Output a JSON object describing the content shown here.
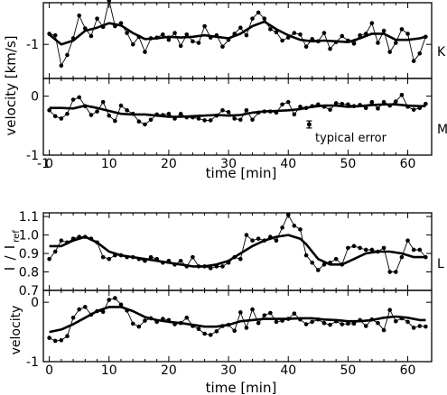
{
  "figure": {
    "background": "#ffffff",
    "ink": "#000000"
  },
  "chart_data": [
    {
      "id": "K",
      "type": "line",
      "panel_label": "K",
      "xlim": [
        -1,
        64
      ],
      "ylim": [
        -1.45,
        -0.45
      ],
      "yticks": [
        {
          "value": -1,
          "label": "-1"
        }
      ],
      "xtick_labels": [],
      "series": [
        {
          "style": "thin-dots",
          "x": [
            0,
            1,
            2,
            3,
            4,
            5,
            6,
            7,
            8,
            9,
            10,
            11,
            12,
            13,
            14,
            15,
            16,
            17,
            18,
            19,
            20,
            21,
            22,
            23,
            24,
            25,
            26,
            27,
            28,
            29,
            30,
            31,
            32,
            33,
            34,
            35,
            36,
            37,
            38,
            39,
            40,
            41,
            42,
            43,
            44,
            45,
            46,
            47,
            48,
            49,
            50,
            51,
            52,
            53,
            54,
            55,
            56,
            57,
            58,
            59,
            60,
            61,
            62,
            63
          ],
          "y": [
            -0.86,
            -0.88,
            -1.28,
            -1.14,
            -0.92,
            -0.62,
            -0.79,
            -0.89,
            -0.66,
            -0.77,
            -0.42,
            -0.76,
            -0.72,
            -0.85,
            -1.0,
            -0.9,
            -1.1,
            -0.92,
            -0.91,
            -0.87,
            -0.94,
            -0.85,
            -1.02,
            -0.87,
            -0.96,
            -0.98,
            -0.76,
            -0.91,
            -0.88,
            -1.03,
            -0.94,
            -0.86,
            -0.78,
            -0.88,
            -0.66,
            -0.58,
            -0.66,
            -0.8,
            -0.84,
            -0.95,
            -0.91,
            -0.85,
            -0.87,
            -1.03,
            -0.93,
            -0.96,
            -0.85,
            -1.06,
            -0.97,
            -0.89,
            -0.95,
            -0.99,
            -0.88,
            -0.86,
            -0.72,
            -0.98,
            -0.82,
            -1.1,
            -0.98,
            -0.8,
            -0.86,
            -1.22,
            -1.12,
            -0.9
          ]
        },
        {
          "style": "thick-smooth",
          "x": [
            0,
            2,
            4,
            6,
            8,
            10,
            12,
            14,
            16,
            18,
            20,
            22,
            24,
            26,
            28,
            30,
            32,
            34,
            36,
            38,
            40,
            42,
            44,
            46,
            48,
            50,
            52,
            54,
            56,
            58,
            60,
            62,
            63
          ],
          "y": [
            -0.87,
            -1.0,
            -0.95,
            -0.82,
            -0.78,
            -0.72,
            -0.75,
            -0.85,
            -0.93,
            -0.92,
            -0.9,
            -0.91,
            -0.9,
            -0.88,
            -0.9,
            -0.92,
            -0.86,
            -0.76,
            -0.7,
            -0.8,
            -0.88,
            -0.94,
            -0.96,
            -0.95,
            -0.96,
            -0.97,
            -0.92,
            -0.86,
            -0.86,
            -0.94,
            -0.94,
            -0.92,
            -0.9
          ]
        }
      ]
    },
    {
      "id": "M",
      "type": "line",
      "panel_label": "M",
      "xlim": [
        -1,
        64
      ],
      "ylim": [
        -1.0,
        0.3
      ],
      "yticks": [
        {
          "value": 0,
          "label": "0"
        },
        {
          "value": -1,
          "label": "-1"
        }
      ],
      "xtick_labels": [
        -1,
        0,
        10,
        20,
        30,
        40,
        50,
        60
      ],
      "xlabel": "time [min]",
      "annotation": "typical error",
      "error_bar": {
        "x": 43.5,
        "y": -0.48,
        "half_height": 0.06
      },
      "series": [
        {
          "style": "thin-dots",
          "x": [
            0,
            1,
            2,
            3,
            4,
            5,
            6,
            7,
            8,
            9,
            10,
            11,
            12,
            13,
            14,
            15,
            16,
            17,
            18,
            19,
            20,
            21,
            22,
            23,
            24,
            25,
            26,
            27,
            28,
            29,
            30,
            31,
            32,
            33,
            34,
            35,
            36,
            37,
            38,
            39,
            40,
            41,
            42,
            43,
            44,
            45,
            46,
            47,
            48,
            49,
            50,
            51,
            52,
            53,
            54,
            55,
            56,
            57,
            58,
            59,
            60,
            61,
            62,
            63
          ],
          "y": [
            -0.24,
            -0.34,
            -0.38,
            -0.3,
            -0.06,
            -0.02,
            -0.17,
            -0.32,
            -0.26,
            -0.1,
            -0.33,
            -0.42,
            -0.16,
            -0.24,
            -0.3,
            -0.43,
            -0.48,
            -0.4,
            -0.31,
            -0.32,
            -0.3,
            -0.38,
            -0.3,
            -0.36,
            -0.36,
            -0.38,
            -0.41,
            -0.41,
            -0.33,
            -0.24,
            -0.27,
            -0.38,
            -0.4,
            -0.24,
            -0.4,
            -0.28,
            -0.26,
            -0.26,
            -0.28,
            -0.14,
            -0.1,
            -0.31,
            -0.18,
            -0.2,
            -0.17,
            -0.14,
            -0.18,
            -0.23,
            -0.12,
            -0.13,
            -0.14,
            -0.17,
            -0.15,
            -0.2,
            -0.1,
            -0.21,
            -0.1,
            -0.16,
            -0.09,
            0.02,
            -0.18,
            -0.23,
            -0.2,
            -0.13
          ]
        },
        {
          "style": "thick-smooth",
          "x": [
            0,
            2,
            4,
            6,
            8,
            10,
            12,
            14,
            16,
            18,
            20,
            22,
            24,
            26,
            28,
            30,
            32,
            34,
            36,
            38,
            40,
            42,
            44,
            46,
            48,
            50,
            52,
            54,
            56,
            58,
            60,
            62,
            63
          ],
          "y": [
            -0.2,
            -0.2,
            -0.21,
            -0.16,
            -0.2,
            -0.25,
            -0.3,
            -0.31,
            -0.31,
            -0.33,
            -0.35,
            -0.35,
            -0.34,
            -0.33,
            -0.32,
            -0.33,
            -0.32,
            -0.28,
            -0.26,
            -0.25,
            -0.24,
            -0.22,
            -0.18,
            -0.16,
            -0.16,
            -0.18,
            -0.17,
            -0.15,
            -0.14,
            -0.14,
            -0.16,
            -0.17,
            -0.17
          ]
        }
      ]
    },
    {
      "id": "L",
      "type": "line",
      "panel_label": "L",
      "xlim": [
        -1,
        64
      ],
      "ylim": [
        0.7,
        1.12
      ],
      "yticks": [
        {
          "value": 1.1,
          "label": "1.1"
        },
        {
          "value": 1.0,
          "label": "1.0"
        },
        {
          "value": 0.9,
          "label": "0.9"
        },
        {
          "value": 0.8,
          "label": "0.8"
        },
        {
          "value": 0.7,
          "label": "0.7"
        }
      ],
      "xtick_labels": [],
      "ylabel": "I / I_ref",
      "ylabel_parts": {
        "I": "I",
        "slash": "/",
        "ref_I": "I",
        "sub": "ref"
      },
      "series": [
        {
          "style": "thin-dots",
          "x": [
            0,
            1,
            2,
            3,
            4,
            5,
            6,
            7,
            8,
            9,
            10,
            11,
            12,
            13,
            14,
            15,
            16,
            17,
            18,
            19,
            20,
            21,
            22,
            23,
            24,
            25,
            26,
            27,
            28,
            29,
            30,
            31,
            32,
            33,
            34,
            35,
            36,
            37,
            38,
            39,
            40,
            41,
            42,
            43,
            44,
            45,
            46,
            47,
            48,
            49,
            50,
            51,
            52,
            53,
            54,
            55,
            56,
            57,
            58,
            59,
            60,
            61,
            62,
            63
          ],
          "y": [
            0.87,
            0.91,
            0.97,
            0.96,
            0.98,
            0.99,
            0.99,
            0.98,
            0.96,
            0.88,
            0.87,
            0.89,
            0.89,
            0.88,
            0.88,
            0.87,
            0.86,
            0.88,
            0.87,
            0.85,
            0.86,
            0.84,
            0.86,
            0.83,
            0.88,
            0.83,
            0.83,
            0.82,
            0.83,
            0.83,
            0.85,
            0.88,
            0.87,
            1.0,
            0.97,
            0.98,
            0.97,
            0.99,
            0.97,
            1.04,
            1.11,
            1.05,
            1.03,
            0.89,
            0.85,
            0.81,
            0.84,
            0.85,
            0.87,
            0.84,
            0.93,
            0.94,
            0.93,
            0.92,
            0.92,
            0.91,
            0.93,
            0.8,
            0.8,
            0.88,
            0.97,
            0.92,
            0.92,
            0.88
          ]
        },
        {
          "style": "thick-smooth",
          "x": [
            0,
            2,
            4,
            6,
            8,
            10,
            12,
            14,
            16,
            18,
            20,
            22,
            24,
            26,
            28,
            30,
            32,
            34,
            36,
            38,
            40,
            42,
            43,
            45,
            47,
            49,
            51,
            53,
            55,
            57,
            59,
            61,
            63
          ],
          "y": [
            0.94,
            0.94,
            0.97,
            0.99,
            0.96,
            0.91,
            0.89,
            0.88,
            0.87,
            0.86,
            0.85,
            0.84,
            0.83,
            0.83,
            0.84,
            0.86,
            0.9,
            0.94,
            0.97,
            0.99,
            1.0,
            0.98,
            0.95,
            0.87,
            0.84,
            0.84,
            0.87,
            0.9,
            0.91,
            0.91,
            0.9,
            0.88,
            0.88
          ]
        }
      ]
    },
    {
      "id": "bottom",
      "type": "line",
      "panel_label": "",
      "xlim": [
        -1,
        64
      ],
      "ylim": [
        -1.0,
        0.2
      ],
      "yticks": [
        {
          "value": 0,
          "label": "0"
        },
        {
          "value": -1,
          "label": "-1"
        }
      ],
      "xtick_labels": [
        0,
        10,
        20,
        30,
        40,
        50,
        60
      ],
      "xlabel": "time [min]",
      "ylabel": "velocity",
      "series": [
        {
          "style": "thin-dots",
          "x": [
            0,
            1,
            2,
            3,
            4,
            5,
            6,
            7,
            8,
            9,
            10,
            11,
            12,
            13,
            14,
            15,
            16,
            17,
            18,
            19,
            20,
            21,
            22,
            23,
            24,
            25,
            26,
            27,
            28,
            29,
            30,
            31,
            32,
            33,
            34,
            35,
            36,
            37,
            38,
            39,
            40,
            41,
            42,
            43,
            44,
            45,
            46,
            47,
            48,
            49,
            50,
            51,
            52,
            53,
            54,
            55,
            56,
            57,
            58,
            59,
            60,
            61,
            62,
            63
          ],
          "y": [
            -0.6,
            -0.65,
            -0.64,
            -0.57,
            -0.26,
            -0.12,
            -0.08,
            -0.21,
            -0.15,
            -0.16,
            0.04,
            0.07,
            -0.04,
            -0.14,
            -0.36,
            -0.41,
            -0.31,
            -0.27,
            -0.33,
            -0.28,
            -0.3,
            -0.37,
            -0.35,
            -0.26,
            -0.4,
            -0.45,
            -0.53,
            -0.55,
            -0.49,
            -0.4,
            -0.38,
            -0.48,
            -0.17,
            -0.43,
            -0.12,
            -0.35,
            -0.22,
            -0.18,
            -0.33,
            -0.31,
            -0.28,
            -0.19,
            -0.29,
            -0.37,
            -0.33,
            -0.29,
            -0.35,
            -0.38,
            -0.32,
            -0.37,
            -0.36,
            -0.36,
            -0.3,
            -0.4,
            -0.29,
            -0.35,
            -0.47,
            -0.13,
            -0.32,
            -0.27,
            -0.33,
            -0.43,
            -0.4,
            -0.41
          ]
        },
        {
          "style": "thick-smooth",
          "x": [
            0,
            2,
            4,
            6,
            8,
            10,
            12,
            14,
            16,
            18,
            20,
            22,
            24,
            26,
            28,
            30,
            32,
            34,
            36,
            38,
            40,
            42,
            44,
            46,
            48,
            50,
            52,
            54,
            56,
            58,
            60,
            62,
            63
          ],
          "y": [
            -0.5,
            -0.46,
            -0.37,
            -0.26,
            -0.15,
            -0.08,
            -0.08,
            -0.15,
            -0.25,
            -0.3,
            -0.33,
            -0.35,
            -0.38,
            -0.41,
            -0.41,
            -0.38,
            -0.32,
            -0.3,
            -0.28,
            -0.28,
            -0.28,
            -0.27,
            -0.27,
            -0.29,
            -0.3,
            -0.32,
            -0.32,
            -0.3,
            -0.26,
            -0.24,
            -0.26,
            -0.3,
            -0.3
          ]
        }
      ]
    }
  ],
  "shared_labels": {
    "velocity_units": "velocity [km/s]"
  }
}
